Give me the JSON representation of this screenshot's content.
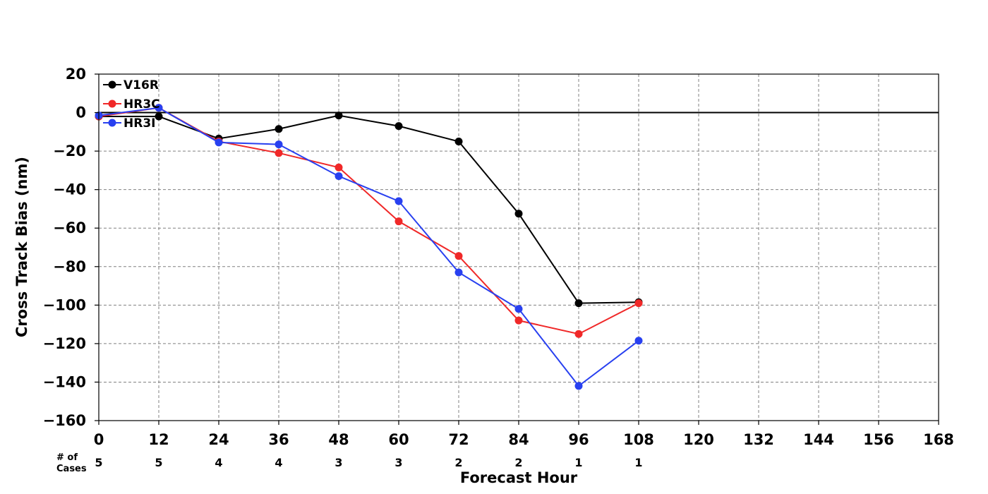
{
  "chart_data": {
    "type": "line",
    "title": "",
    "xlabel": "Forecast Hour",
    "ylabel": "Cross Track Bias (nm)",
    "xlim": [
      0,
      168
    ],
    "ylim": [
      -160,
      20
    ],
    "x_ticks": [
      "0",
      "12",
      "24",
      "36",
      "48",
      "60",
      "72",
      "84",
      "96",
      "108",
      "120",
      "132",
      "144",
      "156",
      "168"
    ],
    "y_ticks": [
      "20",
      "0",
      "−20",
      "−40",
      "−60",
      "−80",
      "−100",
      "−120",
      "−140",
      "−160"
    ],
    "grid": true,
    "legend_position": "top-left",
    "zero_line": true,
    "x": [
      0,
      12,
      24,
      36,
      48,
      60,
      72,
      84,
      96,
      108
    ],
    "series": [
      {
        "name": "V16R",
        "color": "#000000",
        "values": [
          -2,
          -2,
          -13.5,
          -8.5,
          -1.5,
          -7,
          -15,
          -52.5,
          -99,
          -98.5
        ]
      },
      {
        "name": "HR3C",
        "color": "#f02828",
        "values": [
          -2,
          2.5,
          -15,
          -21,
          -28.5,
          -56.5,
          -74.5,
          -108,
          -115,
          -99
        ]
      },
      {
        "name": "HR3I",
        "color": "#2840f0",
        "values": [
          -1.5,
          2.5,
          -15.5,
          -16.5,
          -33,
          -46,
          -83,
          -102,
          -142,
          -118.5
        ]
      }
    ],
    "cases": {
      "header": [
        "# of",
        "Cases"
      ],
      "hours": [
        0,
        12,
        24,
        36,
        48,
        60,
        72,
        84,
        96,
        108
      ],
      "counts": [
        "5",
        "5",
        "4",
        "4",
        "3",
        "3",
        "2",
        "2",
        "1",
        "1"
      ]
    }
  }
}
